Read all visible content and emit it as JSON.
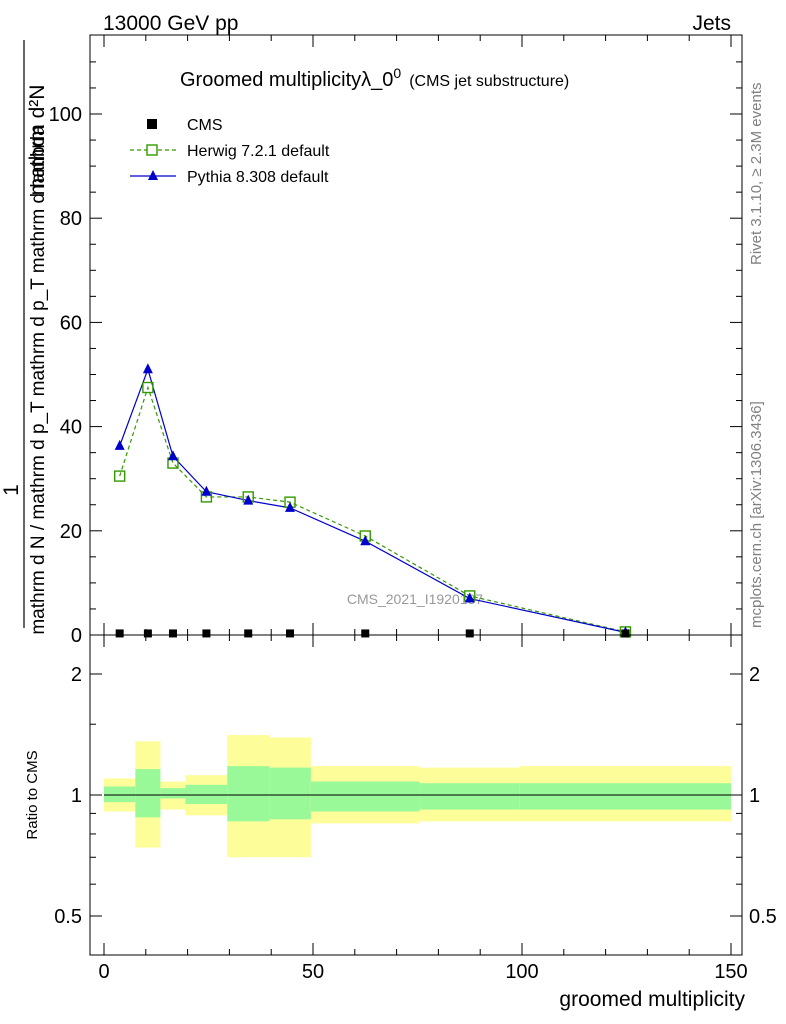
{
  "header": {
    "left": "13000 GeV pp",
    "right": "Jets"
  },
  "side_text": {
    "rivet": "Rivet 3.1.10, ≥ 2.3M events",
    "mcplots": "mcplots.cern.ch [arXiv:1306.3436]"
  },
  "chart_data": [
    {
      "type": "line",
      "title": "Groomed multiplicityλ_0",
      "title_superscript": "0",
      "subtitle": "(CMS jet substructure)",
      "ylabel_fraction_top": "1",
      "ylabel_numerator": "mathrm d²N",
      "ylabel_denominator": "mathrm d N / mathrm d p_T mathrm d p_T mathrm d lambda",
      "watermark": "CMS_2021_I1920187",
      "xlim": [
        -5,
        150
      ],
      "ylim": [
        0,
        115
      ],
      "y_ticks": [
        0,
        20,
        40,
        60,
        80,
        100
      ],
      "x_bins": [
        [
          0,
          7.5
        ],
        [
          7.5,
          13.5
        ],
        [
          13.5,
          19.5
        ],
        [
          19.5,
          29.5
        ],
        [
          29.5,
          39.5
        ],
        [
          39.5,
          49.5
        ],
        [
          49.5,
          75.5
        ],
        [
          75.5,
          99.5
        ],
        [
          99.5,
          150
        ]
      ],
      "x": [
        3.75,
        10.5,
        16.5,
        24.5,
        34.5,
        44.5,
        62.5,
        87.5,
        124.75
      ],
      "series": [
        {
          "name": "CMS",
          "color": "#000000",
          "marker": "square",
          "values": [
            0.3,
            0.3,
            0.3,
            0.3,
            0.3,
            0.3,
            0.3,
            0.3,
            0.3
          ]
        },
        {
          "name": "Herwig 7.2.1 default",
          "color": "#339900",
          "marker": "open-square",
          "dashed": true,
          "values": [
            30.5,
            47.5,
            33,
            26.5,
            26.5,
            25.5,
            19,
            7.5,
            0.6
          ]
        },
        {
          "name": "Pythia 8.308 default",
          "color": "#0000cc",
          "marker": "triangle",
          "dashed": false,
          "values": [
            36.3,
            51,
            34.3,
            27.5,
            25.8,
            24.4,
            18,
            7,
            0.5
          ]
        }
      ]
    },
    {
      "type": "area",
      "ylabel": "Ratio to CMS",
      "xlabel": "groomed multiplicity",
      "xlim": [
        -5,
        150
      ],
      "y_scale": "log",
      "ylim": [
        0.41,
        2.35
      ],
      "y_ticks": [
        0.5,
        1,
        2
      ],
      "x_ticks": [
        0,
        50,
        100,
        150
      ],
      "reference_line": 1,
      "band_colors": {
        "stat": "#99f999",
        "total": "#fdfd99"
      },
      "bands": [
        {
          "x0": 0,
          "x1": 7.5,
          "stat": [
            0.96,
            1.05
          ],
          "total": [
            0.91,
            1.1
          ]
        },
        {
          "x0": 7.5,
          "x1": 13.5,
          "stat": [
            0.88,
            1.16
          ],
          "total": [
            0.74,
            1.36
          ]
        },
        {
          "x0": 13.5,
          "x1": 19.5,
          "stat": [
            0.98,
            1.04
          ],
          "total": [
            0.92,
            1.08
          ]
        },
        {
          "x0": 19.5,
          "x1": 29.5,
          "stat": [
            0.95,
            1.06
          ],
          "total": [
            0.89,
            1.12
          ]
        },
        {
          "x0": 29.5,
          "x1": 39.5,
          "stat": [
            0.86,
            1.18
          ],
          "total": [
            0.7,
            1.41
          ]
        },
        {
          "x0": 39.5,
          "x1": 49.5,
          "stat": [
            0.87,
            1.17
          ],
          "total": [
            0.7,
            1.39
          ]
        },
        {
          "x0": 49.5,
          "x1": 75.5,
          "stat": [
            0.91,
            1.08
          ],
          "total": [
            0.85,
            1.18
          ]
        },
        {
          "x0": 75.5,
          "x1": 99.5,
          "stat": [
            0.92,
            1.07
          ],
          "total": [
            0.86,
            1.17
          ]
        },
        {
          "x0": 99.5,
          "x1": 150,
          "stat": [
            0.92,
            1.07
          ],
          "total": [
            0.86,
            1.18
          ]
        }
      ]
    }
  ]
}
